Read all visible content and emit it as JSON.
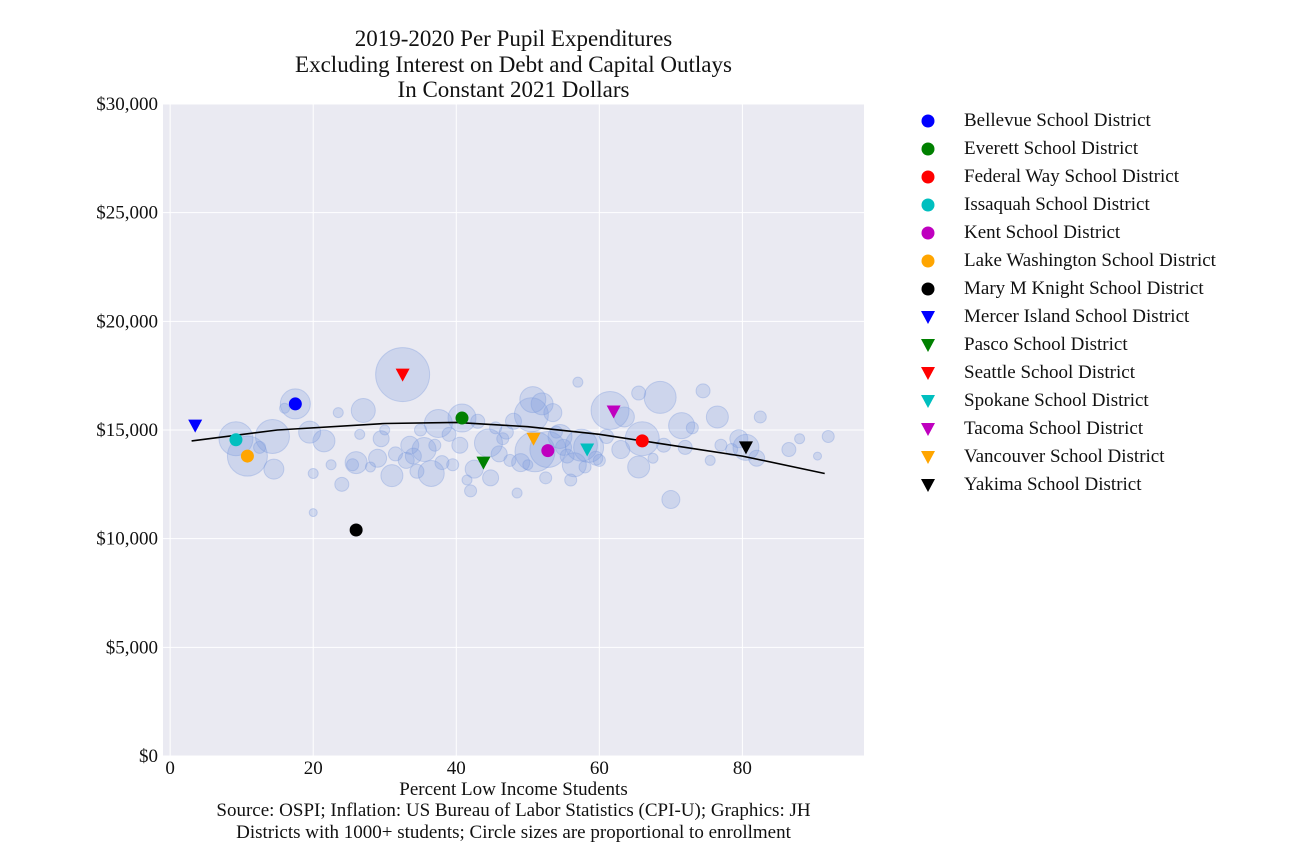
{
  "title_lines": [
    "2019-2020 Per Pupil Expenditures",
    "Excluding Interest on Debt and Capital Outlays",
    "In Constant 2021 Dollars"
  ],
  "xlabel": "Percent Low Income Students",
  "notes": [
    "Source: OSPI; Inflation: US Bureau of Labor Statistics (CPI-U); Graphics: JH",
    "Districts with 1000+ students; Circle sizes are proportional to enrollment"
  ],
  "colors": {
    "background": "#eaeaf2",
    "grid": "#ffffff",
    "bubble_fill": "#7799dd",
    "trend": "#000000"
  },
  "chart_data": {
    "type": "scatter",
    "xlim": [
      -1,
      97
    ],
    "ylim": [
      0,
      30000
    ],
    "x_ticks": [
      0,
      20,
      40,
      60,
      80
    ],
    "y_ticks": [
      {
        "value": 0,
        "label": "$0"
      },
      {
        "value": 5000,
        "label": "$5,000"
      },
      {
        "value": 10000,
        "label": "$10,000"
      },
      {
        "value": 15000,
        "label": "$15,000"
      },
      {
        "value": 20000,
        "label": "$20,000"
      },
      {
        "value": 25000,
        "label": "$25,000"
      },
      {
        "value": 30000,
        "label": "$30,000"
      }
    ],
    "grid": true,
    "legend_position": "right, outside plot",
    "trend_line": {
      "type": "quadratic fit",
      "points": [
        [
          3,
          14500
        ],
        [
          15,
          15000
        ],
        [
          30,
          15300
        ],
        [
          40,
          15350
        ],
        [
          50,
          15150
        ],
        [
          60,
          14800
        ],
        [
          70,
          14300
        ],
        [
          80,
          13800
        ],
        [
          91.5,
          13000
        ]
      ]
    },
    "highlighted": [
      {
        "name": "Bellevue School District",
        "x": 17.5,
        "y": 16200,
        "marker": "circle",
        "color": "#0000ff"
      },
      {
        "name": "Everett School District",
        "x": 40.8,
        "y": 15550,
        "marker": "circle",
        "color": "#008000"
      },
      {
        "name": "Federal Way School District",
        "x": 66.0,
        "y": 14500,
        "marker": "circle",
        "color": "#ff0000"
      },
      {
        "name": "Issaquah School District",
        "x": 9.2,
        "y": 14550,
        "marker": "circle",
        "color": "#00bfbf"
      },
      {
        "name": "Kent School District",
        "x": 52.8,
        "y": 14050,
        "marker": "circle",
        "color": "#bf00bf"
      },
      {
        "name": "Lake Washington School District",
        "x": 10.8,
        "y": 13800,
        "marker": "circle",
        "color": "#ffa500"
      },
      {
        "name": "Mary M Knight School District",
        "x": 26.0,
        "y": 10400,
        "marker": "circle",
        "color": "#000000"
      },
      {
        "name": "Mercer Island School District",
        "x": 3.5,
        "y": 15200,
        "marker": "triangle-down",
        "color": "#0000ff"
      },
      {
        "name": "Pasco School District",
        "x": 43.8,
        "y": 13500,
        "marker": "triangle-down",
        "color": "#008000"
      },
      {
        "name": "Seattle School District",
        "x": 32.5,
        "y": 17550,
        "marker": "triangle-down",
        "color": "#ff0000"
      },
      {
        "name": "Spokane School District",
        "x": 58.3,
        "y": 14100,
        "marker": "triangle-down",
        "color": "#00bfbf"
      },
      {
        "name": "Tacoma School District",
        "x": 62.0,
        "y": 15850,
        "marker": "triangle-down",
        "color": "#bf00bf"
      },
      {
        "name": "Vancouver School District",
        "x": 50.8,
        "y": 14600,
        "marker": "triangle-down",
        "color": "#ffa500"
      },
      {
        "name": "Yakima School District",
        "x": 80.5,
        "y": 14200,
        "marker": "triangle-down",
        "color": "#000000"
      }
    ],
    "bubbles": [
      [
        32.5,
        17550,
        27
      ],
      [
        17.5,
        16200,
        15
      ],
      [
        9.2,
        14600,
        17
      ],
      [
        10.8,
        13800,
        20
      ],
      [
        14.3,
        14700,
        17
      ],
      [
        40.8,
        15550,
        14
      ],
      [
        44.5,
        14400,
        14
      ],
      [
        50.5,
        15700,
        17
      ],
      [
        50.7,
        16400,
        13
      ],
      [
        52.0,
        16200,
        11
      ],
      [
        53.5,
        15800,
        9
      ],
      [
        57.5,
        14300,
        16
      ],
      [
        54.5,
        14700,
        12
      ],
      [
        51.0,
        14000,
        20
      ],
      [
        52.8,
        14100,
        18
      ],
      [
        56.5,
        13400,
        12
      ],
      [
        58.5,
        14200,
        15
      ],
      [
        61.5,
        15900,
        19
      ],
      [
        63.5,
        15600,
        10
      ],
      [
        66.0,
        14600,
        17
      ],
      [
        68.5,
        16500,
        16
      ],
      [
        65.5,
        13300,
        11
      ],
      [
        71.5,
        15200,
        13
      ],
      [
        76.5,
        15600,
        11
      ],
      [
        79.5,
        14600,
        9
      ],
      [
        80.5,
        14200,
        13
      ],
      [
        70.0,
        11800,
        9
      ],
      [
        37.5,
        15300,
        14
      ],
      [
        36.5,
        13000,
        13
      ],
      [
        35.5,
        14100,
        12
      ],
      [
        33.5,
        14300,
        9
      ],
      [
        31.0,
        12900,
        11
      ],
      [
        29.0,
        13700,
        9
      ],
      [
        26.0,
        13500,
        11
      ],
      [
        27.0,
        15900,
        12
      ],
      [
        21.5,
        14500,
        11
      ],
      [
        19.5,
        14900,
        11
      ],
      [
        14.5,
        13200,
        10
      ],
      [
        24.0,
        12500,
        7
      ],
      [
        29.5,
        14600,
        8
      ],
      [
        33.0,
        13600,
        8
      ],
      [
        34.5,
        13100,
        7
      ],
      [
        38.0,
        13500,
        7
      ],
      [
        40.5,
        14300,
        8
      ],
      [
        42.5,
        13200,
        9
      ],
      [
        46.0,
        13900,
        8
      ],
      [
        48.0,
        15400,
        8
      ],
      [
        49.0,
        13500,
        9
      ],
      [
        44.8,
        12800,
        8
      ],
      [
        42.0,
        12200,
        6
      ],
      [
        55.0,
        14200,
        8
      ],
      [
        59.5,
        13700,
        7
      ],
      [
        63.0,
        14100,
        9
      ],
      [
        65.5,
        16700,
        7
      ],
      [
        72.0,
        14200,
        7
      ],
      [
        74.5,
        16800,
        7
      ],
      [
        82.0,
        13700,
        8
      ],
      [
        86.5,
        14100,
        7
      ],
      [
        92.0,
        14700,
        6
      ],
      [
        82.5,
        15600,
        6
      ],
      [
        57.0,
        17200,
        5
      ],
      [
        48.5,
        12100,
        5
      ],
      [
        52.5,
        12800,
        6
      ],
      [
        20.0,
        13000,
        5
      ],
      [
        20.0,
        11200,
        4
      ],
      [
        16.0,
        16000,
        5
      ],
      [
        23.5,
        15800,
        5
      ],
      [
        47.0,
        14900,
        7
      ],
      [
        54.0,
        14900,
        6
      ],
      [
        60.0,
        13600,
        6
      ],
      [
        67.5,
        13700,
        5
      ],
      [
        73.0,
        15100,
        6
      ],
      [
        75.5,
        13600,
        5
      ],
      [
        78.5,
        14100,
        6
      ],
      [
        88.0,
        14600,
        5
      ],
      [
        90.5,
        13800,
        4
      ],
      [
        30.0,
        15000,
        5
      ],
      [
        25.5,
        13400,
        6
      ],
      [
        45.5,
        15100,
        6
      ],
      [
        39.0,
        14800,
        7
      ],
      [
        37.0,
        14300,
        6
      ],
      [
        35.0,
        15000,
        6
      ],
      [
        31.5,
        13900,
        7
      ],
      [
        28.0,
        13300,
        5
      ],
      [
        43.0,
        15400,
        7
      ],
      [
        47.5,
        13600,
        6
      ],
      [
        56.0,
        12700,
        6
      ],
      [
        61.0,
        14700,
        7
      ],
      [
        58.0,
        13300,
        6
      ],
      [
        69.0,
        14300,
        7
      ],
      [
        77.0,
        14300,
        6
      ],
      [
        12.5,
        14200,
        6
      ],
      [
        22.5,
        13400,
        5
      ],
      [
        26.5,
        14800,
        5
      ],
      [
        34.0,
        13800,
        8
      ],
      [
        39.5,
        13400,
        6
      ],
      [
        41.5,
        12700,
        5
      ],
      [
        46.5,
        14600,
        6
      ],
      [
        50.0,
        13400,
        5
      ],
      [
        55.5,
        13800,
        7
      ]
    ]
  }
}
